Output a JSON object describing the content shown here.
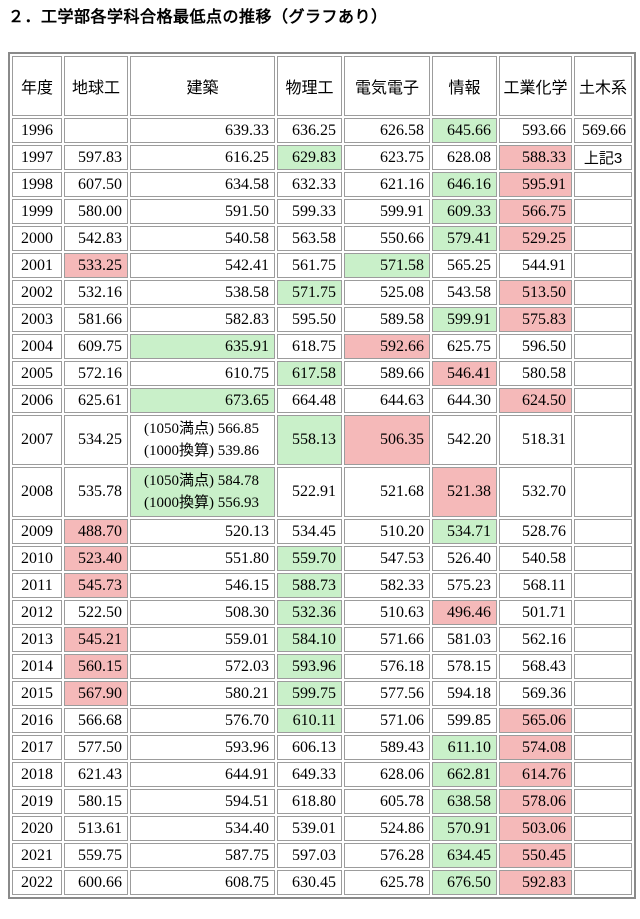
{
  "title": "２．工学部各学科合格最低点の推移（グラフあり）",
  "colors": {
    "max": "#c9f0c9",
    "min": "#f5b9b9"
  },
  "table": {
    "columns": [
      "年度",
      "地球工",
      "建築",
      "物理工",
      "電気電子",
      "情報",
      "工業化学",
      "土木系"
    ],
    "rows": [
      {
        "year": "1996",
        "cells": [
          {
            "t": ""
          },
          {
            "t": "639.33"
          },
          {
            "t": "636.25"
          },
          {
            "t": "626.58"
          },
          {
            "t": "645.66",
            "hl": "max"
          },
          {
            "t": "593.66"
          },
          {
            "t": "569.66"
          }
        ]
      },
      {
        "year": "1997",
        "cells": [
          {
            "t": "597.83"
          },
          {
            "t": "616.25"
          },
          {
            "t": "629.83",
            "hl": "max"
          },
          {
            "t": "623.75"
          },
          {
            "t": "628.08"
          },
          {
            "t": "588.33",
            "hl": "min"
          },
          {
            "t": "上記3",
            "note": true
          }
        ]
      },
      {
        "year": "1998",
        "cells": [
          {
            "t": "607.50"
          },
          {
            "t": "634.58"
          },
          {
            "t": "632.33"
          },
          {
            "t": "621.16"
          },
          {
            "t": "646.16",
            "hl": "max"
          },
          {
            "t": "595.91",
            "hl": "min"
          },
          {
            "t": ""
          }
        ]
      },
      {
        "year": "1999",
        "cells": [
          {
            "t": "580.00"
          },
          {
            "t": "591.50"
          },
          {
            "t": "599.33"
          },
          {
            "t": "599.91"
          },
          {
            "t": "609.33",
            "hl": "max"
          },
          {
            "t": "566.75",
            "hl": "min"
          },
          {
            "t": ""
          }
        ]
      },
      {
        "year": "2000",
        "cells": [
          {
            "t": "542.83"
          },
          {
            "t": "540.58"
          },
          {
            "t": "563.58"
          },
          {
            "t": "550.66"
          },
          {
            "t": "579.41",
            "hl": "max"
          },
          {
            "t": "529.25",
            "hl": "min"
          },
          {
            "t": ""
          }
        ]
      },
      {
        "year": "2001",
        "cells": [
          {
            "t": "533.25",
            "hl": "min"
          },
          {
            "t": "542.41"
          },
          {
            "t": "561.75"
          },
          {
            "t": "571.58",
            "hl": "max"
          },
          {
            "t": "565.25"
          },
          {
            "t": "544.91"
          },
          {
            "t": ""
          }
        ]
      },
      {
        "year": "2002",
        "cells": [
          {
            "t": "532.16"
          },
          {
            "t": "538.58"
          },
          {
            "t": "571.75",
            "hl": "max"
          },
          {
            "t": "525.08"
          },
          {
            "t": "543.58"
          },
          {
            "t": "513.50",
            "hl": "min"
          },
          {
            "t": ""
          }
        ]
      },
      {
        "year": "2003",
        "cells": [
          {
            "t": "581.66"
          },
          {
            "t": "582.83"
          },
          {
            "t": "595.50"
          },
          {
            "t": "589.58"
          },
          {
            "t": "599.91",
            "hl": "max"
          },
          {
            "t": "575.83",
            "hl": "min"
          },
          {
            "t": ""
          }
        ]
      },
      {
        "year": "2004",
        "cells": [
          {
            "t": "609.75"
          },
          {
            "t": "635.91",
            "hl": "max"
          },
          {
            "t": "618.75"
          },
          {
            "t": "592.66",
            "hl": "min"
          },
          {
            "t": "625.75"
          },
          {
            "t": "596.50"
          },
          {
            "t": ""
          }
        ]
      },
      {
        "year": "2005",
        "cells": [
          {
            "t": "572.16"
          },
          {
            "t": "610.75"
          },
          {
            "t": "617.58",
            "hl": "max"
          },
          {
            "t": "589.66"
          },
          {
            "t": "546.41",
            "hl": "min"
          },
          {
            "t": "580.58"
          },
          {
            "t": ""
          }
        ]
      },
      {
        "year": "2006",
        "cells": [
          {
            "t": "625.61"
          },
          {
            "t": "673.65",
            "hl": "max"
          },
          {
            "t": "664.48"
          },
          {
            "t": "644.63"
          },
          {
            "t": "644.30"
          },
          {
            "t": "624.50",
            "hl": "min"
          },
          {
            "t": ""
          }
        ]
      },
      {
        "year": "2007",
        "tall": true,
        "cells": [
          {
            "t": "534.25"
          },
          {
            "lines": [
              "(1050満点) 566.85",
              "(1000換算) 539.86"
            ]
          },
          {
            "t": "558.13",
            "hl": "max"
          },
          {
            "t": "506.35",
            "hl": "min"
          },
          {
            "t": "542.20"
          },
          {
            "t": "518.31"
          },
          {
            "t": ""
          }
        ]
      },
      {
        "year": "2008",
        "tall": true,
        "cells": [
          {
            "t": "535.78"
          },
          {
            "lines": [
              "(1050満点) 584.78",
              "(1000換算) 556.93"
            ],
            "hl": "max"
          },
          {
            "t": "522.91"
          },
          {
            "t": "521.68"
          },
          {
            "t": "521.38",
            "hl": "min"
          },
          {
            "t": "532.70"
          },
          {
            "t": ""
          }
        ]
      },
      {
        "year": "2009",
        "cells": [
          {
            "t": "488.70",
            "hl": "min"
          },
          {
            "t": "520.13"
          },
          {
            "t": "534.45"
          },
          {
            "t": "510.20"
          },
          {
            "t": "534.71",
            "hl": "max"
          },
          {
            "t": "528.76"
          },
          {
            "t": ""
          }
        ]
      },
      {
        "year": "2010",
        "cells": [
          {
            "t": "523.40",
            "hl": "min"
          },
          {
            "t": "551.80"
          },
          {
            "t": "559.70",
            "hl": "max"
          },
          {
            "t": "547.53"
          },
          {
            "t": "526.40"
          },
          {
            "t": "540.58"
          },
          {
            "t": ""
          }
        ]
      },
      {
        "year": "2011",
        "cells": [
          {
            "t": "545.73",
            "hl": "min"
          },
          {
            "t": "546.15"
          },
          {
            "t": "588.73",
            "hl": "max"
          },
          {
            "t": "582.33"
          },
          {
            "t": "575.23"
          },
          {
            "t": "568.11"
          },
          {
            "t": ""
          }
        ]
      },
      {
        "year": "2012",
        "cells": [
          {
            "t": "522.50"
          },
          {
            "t": "508.30"
          },
          {
            "t": "532.36",
            "hl": "max"
          },
          {
            "t": "510.63"
          },
          {
            "t": "496.46",
            "hl": "min"
          },
          {
            "t": "501.71"
          },
          {
            "t": ""
          }
        ]
      },
      {
        "year": "2013",
        "cells": [
          {
            "t": "545.21",
            "hl": "min"
          },
          {
            "t": "559.01"
          },
          {
            "t": "584.10",
            "hl": "max"
          },
          {
            "t": "571.66"
          },
          {
            "t": "581.03"
          },
          {
            "t": "562.16"
          },
          {
            "t": ""
          }
        ]
      },
      {
        "year": "2014",
        "cells": [
          {
            "t": "560.15",
            "hl": "min"
          },
          {
            "t": "572.03"
          },
          {
            "t": "593.96",
            "hl": "max"
          },
          {
            "t": "576.18"
          },
          {
            "t": "578.15"
          },
          {
            "t": "568.43"
          },
          {
            "t": ""
          }
        ]
      },
      {
        "year": "2015",
        "cells": [
          {
            "t": "567.90",
            "hl": "min"
          },
          {
            "t": "580.21"
          },
          {
            "t": "599.75",
            "hl": "max"
          },
          {
            "t": "577.56"
          },
          {
            "t": "594.18"
          },
          {
            "t": "569.36"
          },
          {
            "t": ""
          }
        ]
      },
      {
        "year": "2016",
        "cells": [
          {
            "t": "566.68"
          },
          {
            "t": "576.70"
          },
          {
            "t": "610.11",
            "hl": "max"
          },
          {
            "t": "571.06"
          },
          {
            "t": "599.85"
          },
          {
            "t": "565.06",
            "hl": "min"
          },
          {
            "t": ""
          }
        ]
      },
      {
        "year": "2017",
        "cells": [
          {
            "t": "577.50"
          },
          {
            "t": "593.96"
          },
          {
            "t": "606.13"
          },
          {
            "t": "589.43"
          },
          {
            "t": "611.10",
            "hl": "max"
          },
          {
            "t": "574.08",
            "hl": "min"
          },
          {
            "t": ""
          }
        ]
      },
      {
        "year": "2018",
        "cells": [
          {
            "t": "621.43"
          },
          {
            "t": "644.91"
          },
          {
            "t": "649.33"
          },
          {
            "t": "628.06"
          },
          {
            "t": "662.81",
            "hl": "max"
          },
          {
            "t": "614.76",
            "hl": "min"
          },
          {
            "t": ""
          }
        ]
      },
      {
        "year": "2019",
        "cells": [
          {
            "t": "580.15"
          },
          {
            "t": "594.51"
          },
          {
            "t": "618.80"
          },
          {
            "t": "605.78"
          },
          {
            "t": "638.58",
            "hl": "max"
          },
          {
            "t": "578.06",
            "hl": "min"
          },
          {
            "t": ""
          }
        ]
      },
      {
        "year": "2020",
        "cells": [
          {
            "t": "513.61"
          },
          {
            "t": "534.40"
          },
          {
            "t": "539.01"
          },
          {
            "t": "524.86"
          },
          {
            "t": "570.91",
            "hl": "max"
          },
          {
            "t": "503.06",
            "hl": "min"
          },
          {
            "t": ""
          }
        ]
      },
      {
        "year": "2021",
        "cells": [
          {
            "t": "559.75"
          },
          {
            "t": "587.75"
          },
          {
            "t": "597.03"
          },
          {
            "t": "576.28"
          },
          {
            "t": "634.45",
            "hl": "max"
          },
          {
            "t": "550.45",
            "hl": "min"
          },
          {
            "t": ""
          }
        ]
      },
      {
        "year": "2022",
        "cells": [
          {
            "t": "600.66"
          },
          {
            "t": "608.75"
          },
          {
            "t": "630.45"
          },
          {
            "t": "625.78"
          },
          {
            "t": "676.50",
            "hl": "max"
          },
          {
            "t": "592.83",
            "hl": "min"
          },
          {
            "t": ""
          }
        ]
      }
    ]
  }
}
